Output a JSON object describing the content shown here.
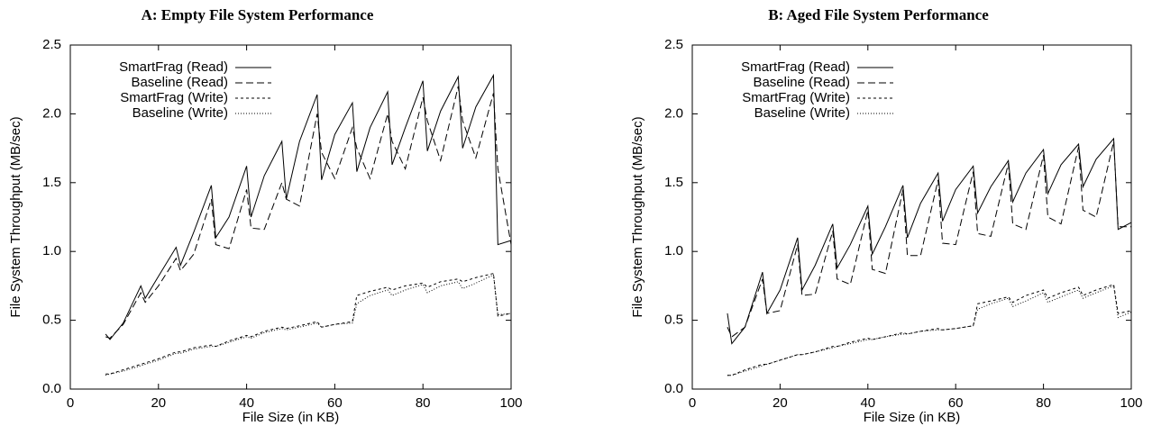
{
  "chart_data": [
    {
      "type": "line",
      "title": "A: Empty File System Performance",
      "x_label": "File Size (in KB)",
      "y_label": "File System Throughput (MB/sec)",
      "xlim": [
        0,
        100
      ],
      "xticks": [
        0,
        20,
        40,
        60,
        80,
        100
      ],
      "ylim": [
        0,
        2.5
      ],
      "yticks": [
        {
          "value": 0,
          "label": "0.0"
        },
        0.5,
        {
          "value": 1,
          "label": "1.0"
        },
        1.5,
        {
          "value": 2,
          "label": "2.0"
        },
        2.5
      ],
      "legend": "upper left",
      "x": [
        8,
        9,
        12,
        16,
        17,
        20,
        24,
        25,
        28,
        32,
        33,
        36,
        40,
        41,
        44,
        48,
        49,
        52,
        56,
        57,
        60,
        64,
        65,
        68,
        72,
        73,
        76,
        80,
        81,
        84,
        88,
        89,
        92,
        96,
        97,
        100
      ],
      "series": [
        {
          "name": "SmartFrag (Read)",
          "color": "#000000",
          "dash": "solid",
          "values": [
            0.4,
            0.36,
            0.48,
            0.75,
            0.66,
            0.82,
            1.03,
            0.9,
            1.14,
            1.48,
            1.1,
            1.25,
            1.62,
            1.25,
            1.55,
            1.8,
            1.38,
            1.8,
            2.14,
            1.52,
            1.85,
            2.08,
            1.58,
            1.9,
            2.16,
            1.63,
            1.9,
            2.24,
            1.73,
            2.02,
            2.27,
            1.75,
            2.05,
            2.28,
            1.05,
            1.08
          ]
        },
        {
          "name": "Baseline (Read)",
          "color": "#000000",
          "dash": "dashed",
          "values": [
            0.38,
            0.37,
            0.47,
            0.7,
            0.63,
            0.75,
            0.95,
            0.86,
            0.98,
            1.38,
            1.05,
            1.02,
            1.45,
            1.17,
            1.16,
            1.5,
            1.38,
            1.33,
            2.0,
            1.72,
            1.53,
            1.9,
            1.75,
            1.53,
            2.0,
            1.8,
            1.6,
            2.12,
            1.95,
            1.66,
            2.2,
            1.95,
            1.68,
            2.15,
            1.6,
            1.05
          ]
        },
        {
          "name": "SmartFrag (Write)",
          "color": "#000000",
          "dash": "short-dashed",
          "values": [
            0.11,
            0.11,
            0.14,
            0.18,
            0.19,
            0.22,
            0.27,
            0.27,
            0.3,
            0.32,
            0.31,
            0.35,
            0.39,
            0.38,
            0.42,
            0.45,
            0.44,
            0.46,
            0.49,
            0.45,
            0.47,
            0.49,
            0.68,
            0.71,
            0.74,
            0.72,
            0.75,
            0.77,
            0.74,
            0.78,
            0.8,
            0.78,
            0.81,
            0.84,
            0.53,
            0.55
          ]
        },
        {
          "name": "Baseline (Write)",
          "color": "#000000",
          "dash": "dotted",
          "values": [
            0.1,
            0.11,
            0.13,
            0.17,
            0.18,
            0.21,
            0.26,
            0.26,
            0.29,
            0.31,
            0.31,
            0.34,
            0.38,
            0.37,
            0.41,
            0.44,
            0.43,
            0.45,
            0.48,
            0.45,
            0.47,
            0.48,
            0.62,
            0.68,
            0.72,
            0.68,
            0.72,
            0.76,
            0.7,
            0.75,
            0.78,
            0.73,
            0.77,
            0.83,
            0.54,
            0.55
          ]
        }
      ]
    },
    {
      "type": "line",
      "title": "B: Aged File System Performance",
      "x_label": "File Size (in KB)",
      "y_label": "File System Throughput (MB/sec)",
      "xlim": [
        0,
        100
      ],
      "xticks": [
        0,
        20,
        40,
        60,
        80,
        100
      ],
      "ylim": [
        0,
        2.5
      ],
      "yticks": [
        {
          "value": 0,
          "label": "0.0"
        },
        0.5,
        {
          "value": 1,
          "label": "1.0"
        },
        1.5,
        {
          "value": 2,
          "label": "2.0"
        },
        2.5
      ],
      "legend": "upper left",
      "x": [
        8,
        9,
        12,
        16,
        17,
        20,
        24,
        25,
        28,
        32,
        33,
        36,
        40,
        41,
        44,
        48,
        49,
        52,
        56,
        57,
        60,
        64,
        65,
        68,
        72,
        73,
        76,
        80,
        81,
        84,
        88,
        89,
        92,
        96,
        97,
        100
      ],
      "series": [
        {
          "name": "SmartFrag (Read)",
          "color": "#000000",
          "dash": "solid",
          "values": [
            0.55,
            0.33,
            0.45,
            0.85,
            0.55,
            0.72,
            1.1,
            0.72,
            0.9,
            1.2,
            0.88,
            1.05,
            1.33,
            0.98,
            1.18,
            1.48,
            1.1,
            1.35,
            1.57,
            1.22,
            1.45,
            1.62,
            1.28,
            1.47,
            1.66,
            1.36,
            1.57,
            1.74,
            1.42,
            1.63,
            1.78,
            1.47,
            1.67,
            1.82,
            1.16,
            1.21
          ]
        },
        {
          "name": "Baseline (Read)",
          "color": "#000000",
          "dash": "dashed",
          "values": [
            0.45,
            0.38,
            0.45,
            0.8,
            0.55,
            0.57,
            1.05,
            0.68,
            0.69,
            1.15,
            0.8,
            0.76,
            1.3,
            0.87,
            0.84,
            1.45,
            0.97,
            0.97,
            1.52,
            1.06,
            1.05,
            1.58,
            1.13,
            1.11,
            1.64,
            1.2,
            1.16,
            1.7,
            1.25,
            1.2,
            1.76,
            1.3,
            1.25,
            1.8,
            1.18,
            1.18
          ]
        },
        {
          "name": "SmartFrag (Write)",
          "color": "#000000",
          "dash": "short-dashed",
          "values": [
            0.1,
            0.1,
            0.14,
            0.18,
            0.18,
            0.21,
            0.25,
            0.25,
            0.27,
            0.31,
            0.31,
            0.34,
            0.37,
            0.36,
            0.38,
            0.41,
            0.4,
            0.42,
            0.44,
            0.43,
            0.44,
            0.46,
            0.62,
            0.64,
            0.67,
            0.63,
            0.68,
            0.72,
            0.66,
            0.7,
            0.74,
            0.68,
            0.72,
            0.76,
            0.55,
            0.57
          ]
        },
        {
          "name": "Baseline (Write)",
          "color": "#000000",
          "dash": "dotted",
          "values": [
            0.1,
            0.1,
            0.13,
            0.17,
            0.18,
            0.21,
            0.25,
            0.25,
            0.27,
            0.3,
            0.31,
            0.33,
            0.36,
            0.36,
            0.38,
            0.4,
            0.4,
            0.42,
            0.43,
            0.43,
            0.44,
            0.46,
            0.58,
            0.62,
            0.66,
            0.6,
            0.64,
            0.7,
            0.63,
            0.67,
            0.72,
            0.66,
            0.7,
            0.75,
            0.52,
            0.56
          ]
        }
      ]
    }
  ]
}
